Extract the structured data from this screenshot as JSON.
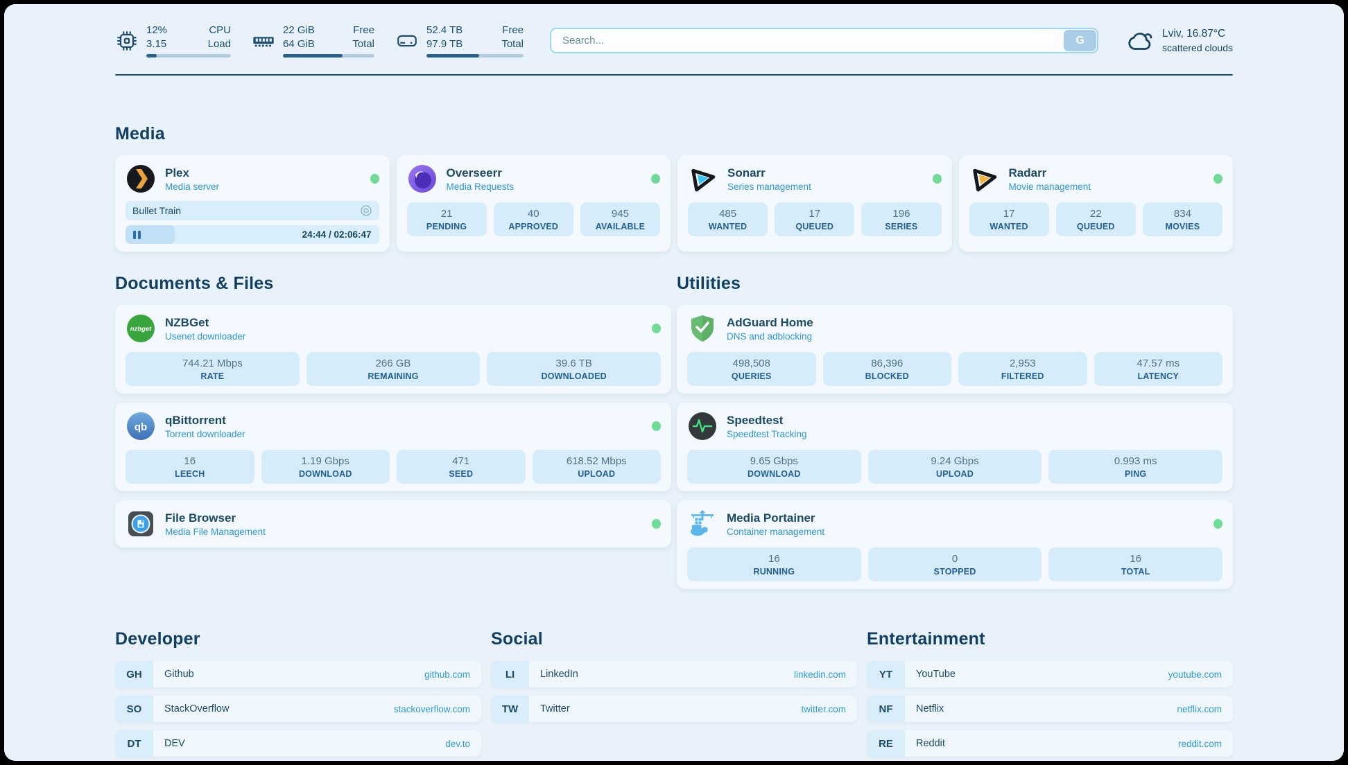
{
  "colors": {
    "accent_blue": "#2f97d8",
    "text_dark": "#1c4a66",
    "status_online": "#6fdb96"
  },
  "topbar": {
    "cpu": {
      "percent": "12%",
      "load": "3.15",
      "label1": "CPU",
      "label2": "Load",
      "progress_pct": 12
    },
    "ram": {
      "free": "22 GiB",
      "total": "64 GiB",
      "label1": "Free",
      "label2": "Total",
      "progress_pct": 65
    },
    "disk": {
      "free": "52.4 TB",
      "total": "97.9 TB",
      "label1": "Free",
      "label2": "Total",
      "progress_pct": 54
    },
    "search": {
      "placeholder": "Search...",
      "button_label": "G"
    },
    "weather": {
      "summary": "Lviv, 16.87°C",
      "condition": "scattered clouds"
    }
  },
  "sections": {
    "media": "Media",
    "documents": "Documents & Files",
    "utilities": "Utilities",
    "developer": "Developer",
    "social": "Social",
    "entertainment": "Entertainment"
  },
  "apps": {
    "plex": {
      "name": "Plex",
      "desc": "Media server",
      "now_playing": "Bullet Train",
      "time": "24:44 / 02:06:47",
      "progress_pct": 19.5
    },
    "overseerr": {
      "name": "Overseerr",
      "desc": "Media Requests",
      "stats": [
        {
          "value": "21",
          "label": "PENDING"
        },
        {
          "value": "40",
          "label": "APPROVED"
        },
        {
          "value": "945",
          "label": "AVAILABLE"
        }
      ]
    },
    "sonarr": {
      "name": "Sonarr",
      "desc": "Series management",
      "stats": [
        {
          "value": "485",
          "label": "WANTED"
        },
        {
          "value": "17",
          "label": "QUEUED"
        },
        {
          "value": "196",
          "label": "SERIES"
        }
      ]
    },
    "radarr": {
      "name": "Radarr",
      "desc": "Movie management",
      "stats": [
        {
          "value": "17",
          "label": "WANTED"
        },
        {
          "value": "22",
          "label": "QUEUED"
        },
        {
          "value": "834",
          "label": "MOVIES"
        }
      ]
    },
    "nzbget": {
      "name": "NZBGet",
      "desc": "Usenet downloader",
      "stats": [
        {
          "value": "744.21 Mbps",
          "label": "RATE"
        },
        {
          "value": "266 GB",
          "label": "REMAINING"
        },
        {
          "value": "39.6 TB",
          "label": "DOWNLOADED"
        }
      ]
    },
    "qbittorrent": {
      "name": "qBittorrent",
      "desc": "Torrent downloader",
      "stats": [
        {
          "value": "16",
          "label": "LEECH"
        },
        {
          "value": "1.19 Gbps",
          "label": "DOWNLOAD"
        },
        {
          "value": "471",
          "label": "SEED"
        },
        {
          "value": "618.52 Mbps",
          "label": "UPLOAD"
        }
      ]
    },
    "filebrowser": {
      "name": "File Browser",
      "desc": "Media File Management"
    },
    "adguard": {
      "name": "AdGuard Home",
      "desc": "DNS and adblocking",
      "stats": [
        {
          "value": "498,508",
          "label": "QUERIES"
        },
        {
          "value": "86,396",
          "label": "BLOCKED"
        },
        {
          "value": "2,953",
          "label": "FILTERED"
        },
        {
          "value": "47.57 ms",
          "label": "LATENCY"
        }
      ]
    },
    "speedtest": {
      "name": "Speedtest",
      "desc": "Speedtest Tracking",
      "stats": [
        {
          "value": "9.65 Gbps",
          "label": "DOWNLOAD"
        },
        {
          "value": "9.24 Gbps",
          "label": "UPLOAD"
        },
        {
          "value": "0.993 ms",
          "label": "PING"
        }
      ]
    },
    "portainer": {
      "name": "Media Portainer",
      "desc": "Container management",
      "stats": [
        {
          "value": "16",
          "label": "RUNNING"
        },
        {
          "value": "0",
          "label": "STOPPED"
        },
        {
          "value": "16",
          "label": "TOTAL"
        }
      ]
    }
  },
  "bookmarks": {
    "developer": [
      {
        "abbr": "GH",
        "name": "Github",
        "url": "github.com"
      },
      {
        "abbr": "SO",
        "name": "StackOverflow",
        "url": "stackoverflow.com"
      },
      {
        "abbr": "DT",
        "name": "DEV",
        "url": "dev.to"
      }
    ],
    "social": [
      {
        "abbr": "LI",
        "name": "LinkedIn",
        "url": "linkedin.com"
      },
      {
        "abbr": "TW",
        "name": "Twitter",
        "url": "twitter.com"
      }
    ],
    "entertainment": [
      {
        "abbr": "YT",
        "name": "YouTube",
        "url": "youtube.com"
      },
      {
        "abbr": "NF",
        "name": "Netflix",
        "url": "netflix.com"
      },
      {
        "abbr": "RE",
        "name": "Reddit",
        "url": "reddit.com"
      }
    ]
  }
}
